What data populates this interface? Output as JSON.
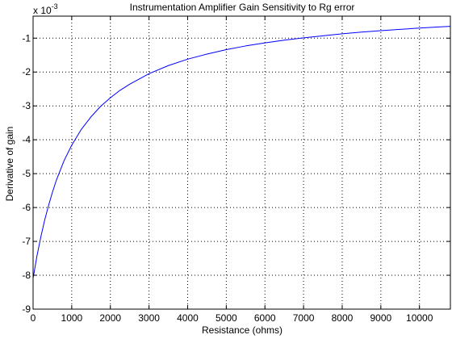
{
  "chart_data": {
    "type": "line",
    "title": "Instrumentation Amplifier Gain Sensitivity to Rg error",
    "xlabel": "Resistance (ohms)",
    "ylabel": "Derivative of gain",
    "y_multiplier": {
      "base": "x 10",
      "exponent": "-3"
    },
    "xlim": [
      0,
      10800
    ],
    "ylim": [
      -9,
      -0.35
    ],
    "x_ticks": [
      0,
      1000,
      2000,
      3000,
      4000,
      5000,
      6000,
      7000,
      8000,
      9000,
      10000
    ],
    "x_tick_labels": [
      "0",
      "1000",
      "2000",
      "3000",
      "4000",
      "5000",
      "6000",
      "7000",
      "8000",
      "9000",
      "10000"
    ],
    "y_ticks": [
      -9,
      -8,
      -7,
      -6,
      -5,
      -4,
      -3,
      -2,
      -1
    ],
    "y_tick_labels": [
      "-9",
      "-8",
      "-7",
      "-6",
      "-5",
      "-4",
      "-3",
      "-2",
      "-1"
    ],
    "grid": true,
    "line_color": "#0000ff",
    "series": [
      {
        "x": [
          0,
          100,
          200,
          300,
          400,
          500,
          600,
          800,
          1000,
          1250,
          1500,
          1750,
          2000,
          2250,
          2500,
          3000,
          3500,
          4000,
          4500,
          5000,
          5500,
          6000,
          6500,
          7000,
          7500,
          8000,
          8500,
          9000,
          9500,
          10000,
          10500,
          10800
        ],
        "y": [
          -8.09,
          -7.43,
          -6.87,
          -6.37,
          -5.94,
          -5.55,
          -5.2,
          -4.62,
          -4.16,
          -3.69,
          -3.32,
          -3.01,
          -2.76,
          -2.54,
          -2.36,
          -2.05,
          -1.81,
          -1.62,
          -1.47,
          -1.34,
          -1.23,
          -1.14,
          -1.06,
          -0.99,
          -0.93,
          -0.87,
          -0.82,
          -0.78,
          -0.74,
          -0.7,
          -0.67,
          -0.65
        ]
      }
    ]
  }
}
